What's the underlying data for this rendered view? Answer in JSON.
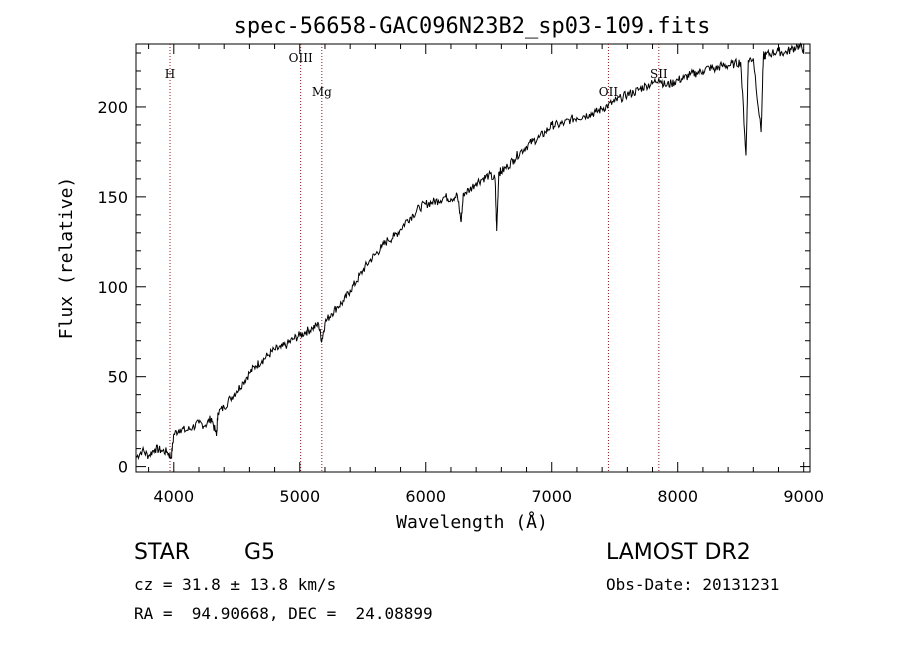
{
  "chart_data": {
    "type": "line",
    "title": "spec-56658-GAC096N23B2_sp03-109.fits",
    "xlabel": "Wavelength (Å)",
    "ylabel": "Flux (relative)",
    "xlim": [
      3700,
      9050
    ],
    "ylim": [
      -3,
      235
    ],
    "x_ticks": [
      4000,
      5000,
      6000,
      7000,
      8000,
      9000
    ],
    "y_ticks": [
      0,
      50,
      100,
      150,
      200
    ],
    "grid": false,
    "line_color": "#000000",
    "marker_color": "#8b1a1a",
    "line_markers": [
      {
        "label": "H",
        "x": 3970
      },
      {
        "label": "OIII",
        "x": 5007
      },
      {
        "label": "Mg",
        "x": 5175
      },
      {
        "label": "OII",
        "x": 7450
      },
      {
        "label": "SII",
        "x": 7850
      }
    ],
    "spectrum": [
      [
        3700,
        5
      ],
      [
        3750,
        9
      ],
      [
        3800,
        6
      ],
      [
        3850,
        10
      ],
      [
        3900,
        9
      ],
      [
        3950,
        8
      ],
      [
        3980,
        5
      ],
      [
        4000,
        18
      ],
      [
        4050,
        21
      ],
      [
        4100,
        20
      ],
      [
        4150,
        22
      ],
      [
        4200,
        24
      ],
      [
        4250,
        23
      ],
      [
        4300,
        27
      ],
      [
        4340,
        17
      ],
      [
        4350,
        30
      ],
      [
        4400,
        33
      ],
      [
        4450,
        38
      ],
      [
        4500,
        42
      ],
      [
        4550,
        47
      ],
      [
        4600,
        52
      ],
      [
        4650,
        56
      ],
      [
        4700,
        59
      ],
      [
        4750,
        62
      ],
      [
        4800,
        65
      ],
      [
        4850,
        66
      ],
      [
        4900,
        68
      ],
      [
        4950,
        71
      ],
      [
        5000,
        73
      ],
      [
        5050,
        75
      ],
      [
        5100,
        77
      ],
      [
        5150,
        79
      ],
      [
        5175,
        70
      ],
      [
        5200,
        80
      ],
      [
        5250,
        85
      ],
      [
        5300,
        89
      ],
      [
        5350,
        92
      ],
      [
        5400,
        98
      ],
      [
        5450,
        103
      ],
      [
        5500,
        109
      ],
      [
        5550,
        114
      ],
      [
        5600,
        118
      ],
      [
        5650,
        122
      ],
      [
        5700,
        126
      ],
      [
        5750,
        128
      ],
      [
        5800,
        132
      ],
      [
        5850,
        137
      ],
      [
        5900,
        140
      ],
      [
        5950,
        144
      ],
      [
        6000,
        146
      ],
      [
        6050,
        147
      ],
      [
        6100,
        148
      ],
      [
        6150,
        150
      ],
      [
        6200,
        149
      ],
      [
        6250,
        151
      ],
      [
        6280,
        136
      ],
      [
        6300,
        152
      ],
      [
        6350,
        154
      ],
      [
        6400,
        158
      ],
      [
        6450,
        160
      ],
      [
        6500,
        162
      ],
      [
        6550,
        160
      ],
      [
        6563,
        131
      ],
      [
        6580,
        164
      ],
      [
        6600,
        164
      ],
      [
        6650,
        167
      ],
      [
        6700,
        171
      ],
      [
        6750,
        175
      ],
      [
        6800,
        178
      ],
      [
        6850,
        181
      ],
      [
        6900,
        183
      ],
      [
        6950,
        186
      ],
      [
        7000,
        190
      ],
      [
        7050,
        190
      ],
      [
        7100,
        191
      ],
      [
        7150,
        193
      ],
      [
        7200,
        194
      ],
      [
        7250,
        195
      ],
      [
        7300,
        196
      ],
      [
        7350,
        197
      ],
      [
        7400,
        199
      ],
      [
        7450,
        201
      ],
      [
        7500,
        203
      ],
      [
        7550,
        205
      ],
      [
        7600,
        207
      ],
      [
        7650,
        208
      ],
      [
        7700,
        210
      ],
      [
        7750,
        212
      ],
      [
        7800,
        213
      ],
      [
        7850,
        216
      ],
      [
        7900,
        212
      ],
      [
        7950,
        213
      ],
      [
        8000,
        215
      ],
      [
        8050,
        216
      ],
      [
        8100,
        218
      ],
      [
        8150,
        219
      ],
      [
        8200,
        220
      ],
      [
        8250,
        222
      ],
      [
        8300,
        221
      ],
      [
        8350,
        223
      ],
      [
        8400,
        223
      ],
      [
        8450,
        224
      ],
      [
        8500,
        225
      ],
      [
        8542,
        173
      ],
      [
        8560,
        226
      ],
      [
        8600,
        227
      ],
      [
        8662,
        186
      ],
      [
        8680,
        228
      ],
      [
        8700,
        229
      ],
      [
        8750,
        230
      ],
      [
        8800,
        231
      ],
      [
        8850,
        230
      ],
      [
        8900,
        232
      ],
      [
        8950,
        234
      ],
      [
        9000,
        232
      ]
    ]
  },
  "labels": {
    "object_class": "STAR",
    "subclass": "G5",
    "survey": "LAMOST DR2",
    "cz": "cz = 31.8 ± 13.8 km/s",
    "obs_date": "Obs-Date: 20131231",
    "coords": "RA =  94.90668, DEC =  24.08899"
  }
}
